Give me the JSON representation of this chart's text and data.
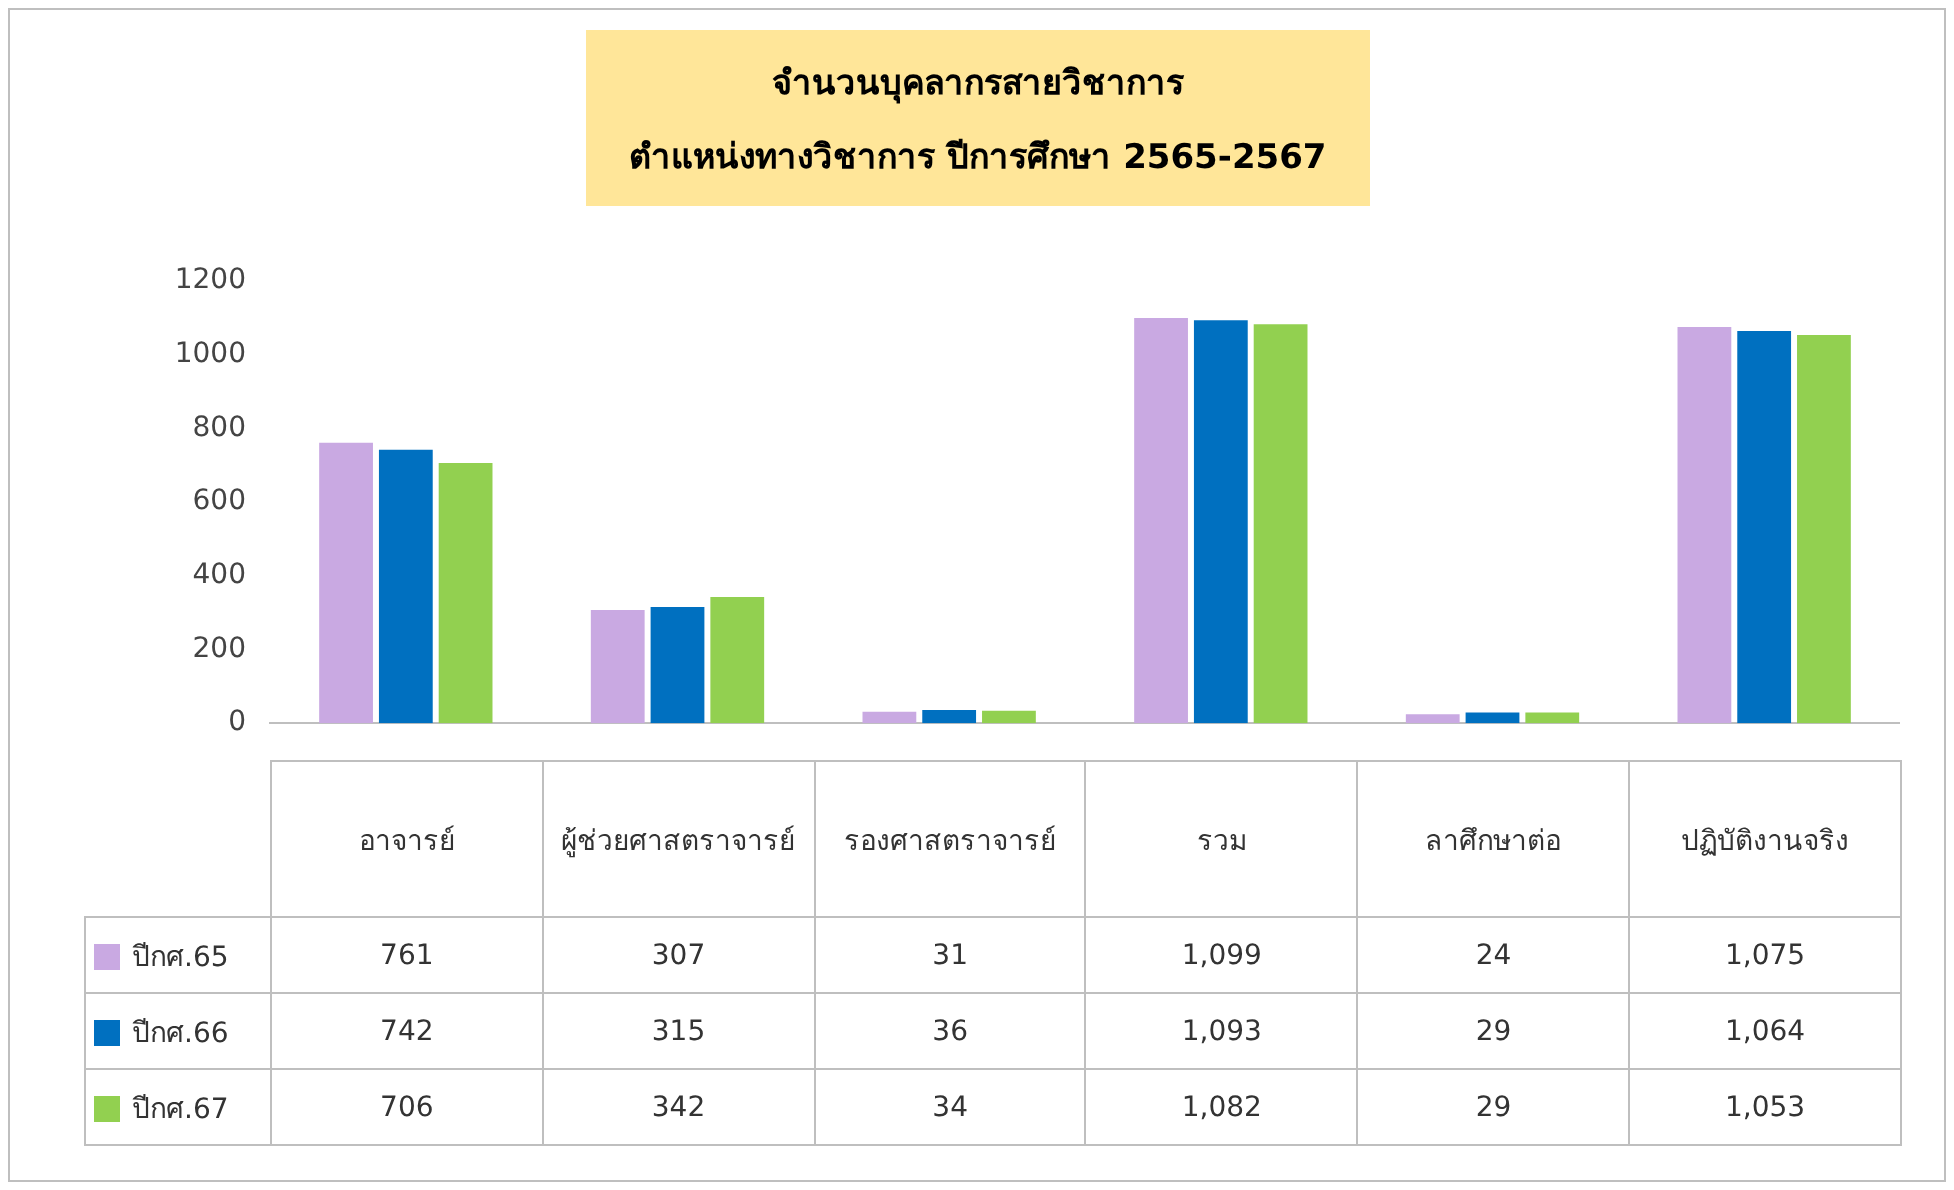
{
  "chart_data": {
    "type": "bar",
    "title": "จำนวนบุคลากรสายวิชาการ",
    "subtitle": "ตำแหน่งทางวิชาการ ปีการศึกษา 2565-2567",
    "categories": [
      "อาจารย์",
      "ผู้ช่วยศาสตราจารย์",
      "รองศาสตราจารย์",
      "รวม",
      "ลาศึกษาต่อ",
      "ปฏิบัติงานจริง"
    ],
    "series": [
      {
        "name": "ปีกศ.65",
        "color": "#c9a9e2",
        "values": [
          761,
          307,
          31,
          1099,
          24,
          1075
        ],
        "value_labels": [
          "761",
          "307",
          "31",
          "1,099",
          "24",
          "1,075"
        ]
      },
      {
        "name": "ปีกศ.66",
        "color": "#0070c0",
        "values": [
          742,
          315,
          36,
          1093,
          29,
          1064
        ],
        "value_labels": [
          "742",
          "315",
          "36",
          "1,093",
          "29",
          "1,064"
        ]
      },
      {
        "name": "ปีกศ.67",
        "color": "#92d050",
        "values": [
          706,
          342,
          34,
          1082,
          29,
          1053
        ],
        "value_labels": [
          "706",
          "342",
          "34",
          "1,082",
          "29",
          "1,053"
        ]
      }
    ],
    "ylim": [
      0,
      1200
    ],
    "yticks": [
      0,
      200,
      400,
      600,
      800,
      1000,
      1200
    ],
    "grid": false,
    "legend": "bottom"
  }
}
